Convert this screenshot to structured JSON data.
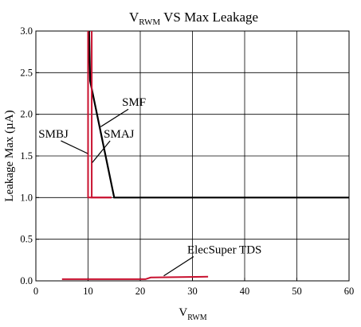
{
  "chart_data": {
    "type": "line",
    "title": {
      "main": "V",
      "sub": "RWM",
      "rest": " VS Max Leakage"
    },
    "xlabel": {
      "main": "V",
      "sub": "RWM"
    },
    "ylabel": "Leakage Max (µA)",
    "xlim": [
      0,
      60
    ],
    "ylim": [
      0,
      3.0
    ],
    "x_ticks": [
      "0",
      "10",
      "20",
      "30",
      "40",
      "50",
      "60"
    ],
    "y_ticks": [
      "0.0",
      "0.5",
      "1.0",
      "1.5",
      "2.0",
      "2.5",
      "3.0"
    ],
    "grid": true,
    "series": [
      {
        "name": "SMF",
        "color": "#000000",
        "points": [
          [
            10.2,
            3.0
          ],
          [
            10.4,
            2.4
          ],
          [
            15,
            1.0
          ],
          [
            60,
            1.0
          ]
        ]
      },
      {
        "name": "SMBJ",
        "color": "#c8102e",
        "points": [
          [
            10,
            3.0
          ],
          [
            10,
            1.0
          ],
          [
            14.5,
            1.0
          ]
        ]
      },
      {
        "name": "SMAJ",
        "color": "#c8102e",
        "points": [
          [
            10.7,
            3.0
          ],
          [
            10.7,
            1.0
          ],
          [
            14.5,
            1.0
          ]
        ]
      },
      {
        "name": "ElecSuper TDS",
        "color": "#c8102e",
        "points": [
          [
            5,
            0.02
          ],
          [
            21,
            0.02
          ],
          [
            22,
            0.04
          ],
          [
            33,
            0.05
          ]
        ]
      }
    ],
    "annotations": [
      {
        "text": "SMF",
        "x": 16.5,
        "y": 2.1,
        "target": [
          12.4,
          1.85
        ]
      },
      {
        "text": "SMBJ",
        "x": 0.5,
        "y": 1.72,
        "target": [
          9.9,
          1.53
        ]
      },
      {
        "text": "SMAJ",
        "x": 13.0,
        "y": 1.72,
        "target": [
          10.8,
          1.42
        ]
      },
      {
        "text": "ElecSuper TDS",
        "x": 29.0,
        "y": 0.33,
        "target": [
          24.5,
          0.06
        ]
      }
    ]
  }
}
